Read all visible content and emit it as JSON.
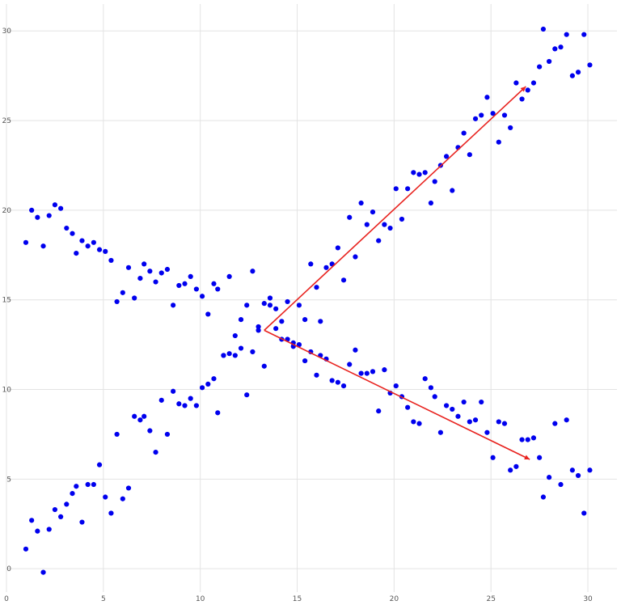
{
  "chart_data": {
    "type": "scatter",
    "title": "",
    "xlabel": "",
    "ylabel": "",
    "xlim": [
      0,
      31.5
    ],
    "ylim": [
      -1.3,
      31.5
    ],
    "xticks": [
      0,
      5,
      10,
      15,
      20,
      25,
      30
    ],
    "yticks": [
      0,
      5,
      10,
      15,
      20,
      25,
      30
    ],
    "grid": true,
    "legend": "none",
    "point_color": "#0000ee",
    "arrow_color": "#e8231f",
    "series": [
      {
        "points": [
          [
            1.0,
            1.1
          ],
          [
            1.3,
            2.7
          ],
          [
            1.6,
            2.1
          ],
          [
            1.9,
            -0.2
          ],
          [
            2.2,
            2.2
          ],
          [
            2.5,
            3.3
          ],
          [
            2.8,
            2.9
          ],
          [
            3.1,
            3.6
          ],
          [
            3.4,
            4.2
          ],
          [
            3.6,
            4.6
          ],
          [
            3.9,
            2.6
          ],
          [
            4.2,
            4.7
          ],
          [
            4.5,
            4.7
          ],
          [
            4.8,
            5.8
          ],
          [
            5.1,
            4.0
          ],
          [
            5.4,
            3.1
          ],
          [
            5.7,
            7.5
          ],
          [
            6.0,
            3.9
          ],
          [
            6.3,
            4.5
          ],
          [
            6.6,
            8.5
          ],
          [
            6.9,
            8.3
          ],
          [
            7.1,
            8.5
          ],
          [
            7.4,
            7.7
          ],
          [
            7.7,
            6.5
          ],
          [
            8.0,
            9.4
          ],
          [
            8.3,
            7.5
          ],
          [
            8.6,
            9.9
          ],
          [
            8.9,
            9.2
          ],
          [
            9.2,
            9.1
          ],
          [
            9.5,
            9.5
          ],
          [
            9.8,
            9.1
          ],
          [
            10.1,
            10.1
          ],
          [
            10.4,
            10.3
          ],
          [
            10.7,
            10.6
          ],
          [
            10.9,
            8.7
          ],
          [
            11.2,
            11.9
          ],
          [
            11.5,
            12.0
          ],
          [
            11.8,
            11.9
          ],
          [
            12.1,
            12.3
          ],
          [
            12.4,
            9.7
          ],
          [
            12.7,
            12.1
          ],
          [
            13.0,
            13.3
          ],
          [
            13.3,
            11.3
          ],
          [
            13.6,
            14.7
          ],
          [
            13.9,
            14.5
          ],
          [
            14.2,
            13.8
          ],
          [
            14.5,
            14.9
          ],
          [
            14.8,
            12.6
          ],
          [
            15.1,
            14.7
          ],
          [
            15.4,
            13.9
          ],
          [
            15.7,
            17.0
          ],
          [
            16.0,
            15.7
          ],
          [
            16.2,
            13.8
          ],
          [
            16.5,
            16.8
          ],
          [
            16.8,
            17.0
          ],
          [
            17.1,
            17.9
          ],
          [
            17.4,
            16.1
          ],
          [
            17.7,
            19.6
          ],
          [
            18.0,
            17.4
          ],
          [
            18.3,
            20.4
          ],
          [
            18.6,
            19.2
          ],
          [
            18.9,
            19.9
          ],
          [
            19.2,
            18.3
          ],
          [
            19.5,
            19.2
          ],
          [
            19.8,
            19.0
          ],
          [
            20.1,
            21.2
          ],
          [
            20.4,
            19.5
          ],
          [
            20.7,
            21.2
          ],
          [
            21.0,
            22.1
          ],
          [
            21.3,
            22.0
          ],
          [
            21.6,
            22.1
          ],
          [
            21.9,
            20.4
          ],
          [
            22.1,
            21.6
          ],
          [
            22.4,
            22.5
          ],
          [
            22.7,
            23.0
          ],
          [
            23.0,
            21.1
          ],
          [
            23.3,
            23.5
          ],
          [
            23.6,
            24.3
          ],
          [
            23.9,
            23.1
          ],
          [
            24.2,
            25.1
          ],
          [
            24.5,
            25.3
          ],
          [
            24.8,
            26.3
          ],
          [
            25.1,
            25.4
          ],
          [
            25.4,
            23.8
          ],
          [
            25.7,
            25.3
          ],
          [
            26.0,
            24.6
          ],
          [
            26.3,
            27.1
          ],
          [
            26.6,
            26.2
          ],
          [
            26.9,
            26.7
          ],
          [
            27.2,
            27.1
          ],
          [
            27.5,
            28.0
          ],
          [
            27.7,
            30.1
          ],
          [
            28.0,
            28.3
          ],
          [
            28.3,
            29.0
          ],
          [
            28.6,
            29.1
          ],
          [
            28.9,
            29.8
          ],
          [
            29.2,
            27.5
          ],
          [
            29.5,
            27.7
          ],
          [
            29.8,
            29.8
          ],
          [
            30.1,
            28.1
          ]
        ]
      },
      {
        "points": [
          [
            1.0,
            18.2
          ],
          [
            1.3,
            20.0
          ],
          [
            1.6,
            19.6
          ],
          [
            1.9,
            18.0
          ],
          [
            2.2,
            19.7
          ],
          [
            2.5,
            20.3
          ],
          [
            2.8,
            20.1
          ],
          [
            3.1,
            19.0
          ],
          [
            3.4,
            18.7
          ],
          [
            3.6,
            17.6
          ],
          [
            3.9,
            18.3
          ],
          [
            4.2,
            18.0
          ],
          [
            4.5,
            18.2
          ],
          [
            4.8,
            17.8
          ],
          [
            5.1,
            17.7
          ],
          [
            5.4,
            17.2
          ],
          [
            5.7,
            14.9
          ],
          [
            6.0,
            15.4
          ],
          [
            6.3,
            16.8
          ],
          [
            6.6,
            15.1
          ],
          [
            6.9,
            16.2
          ],
          [
            7.1,
            17.0
          ],
          [
            7.4,
            16.6
          ],
          [
            7.7,
            16.0
          ],
          [
            8.0,
            16.5
          ],
          [
            8.3,
            16.7
          ],
          [
            8.6,
            14.7
          ],
          [
            8.9,
            15.8
          ],
          [
            9.2,
            15.9
          ],
          [
            9.5,
            16.3
          ],
          [
            9.8,
            15.6
          ],
          [
            10.1,
            15.2
          ],
          [
            10.4,
            14.2
          ],
          [
            10.7,
            15.9
          ],
          [
            10.9,
            15.6
          ],
          [
            11.2,
            11.9
          ],
          [
            11.5,
            16.3
          ],
          [
            11.8,
            13.0
          ],
          [
            12.1,
            13.9
          ],
          [
            12.4,
            14.7
          ],
          [
            12.7,
            16.6
          ],
          [
            13.0,
            13.5
          ],
          [
            13.3,
            14.8
          ],
          [
            13.6,
            15.1
          ],
          [
            13.9,
            13.4
          ],
          [
            14.2,
            12.8
          ],
          [
            14.5,
            12.8
          ],
          [
            14.8,
            12.4
          ],
          [
            15.1,
            12.5
          ],
          [
            15.4,
            11.6
          ],
          [
            15.7,
            12.1
          ],
          [
            16.0,
            10.8
          ],
          [
            16.2,
            11.9
          ],
          [
            16.5,
            11.7
          ],
          [
            16.8,
            10.5
          ],
          [
            17.1,
            10.4
          ],
          [
            17.4,
            10.2
          ],
          [
            17.7,
            11.4
          ],
          [
            18.0,
            12.2
          ],
          [
            18.3,
            10.9
          ],
          [
            18.6,
            10.9
          ],
          [
            18.9,
            11.0
          ],
          [
            19.2,
            8.8
          ],
          [
            19.5,
            11.1
          ],
          [
            19.8,
            9.8
          ],
          [
            20.1,
            10.2
          ],
          [
            20.4,
            9.6
          ],
          [
            20.7,
            9.0
          ],
          [
            21.0,
            8.2
          ],
          [
            21.3,
            8.1
          ],
          [
            21.6,
            10.6
          ],
          [
            21.9,
            10.1
          ],
          [
            22.1,
            9.6
          ],
          [
            22.4,
            7.6
          ],
          [
            22.7,
            9.1
          ],
          [
            23.0,
            8.9
          ],
          [
            23.3,
            8.5
          ],
          [
            23.6,
            9.3
          ],
          [
            23.9,
            8.2
          ],
          [
            24.2,
            8.3
          ],
          [
            24.5,
            9.3
          ],
          [
            24.8,
            7.6
          ],
          [
            25.1,
            6.2
          ],
          [
            25.4,
            8.2
          ],
          [
            25.7,
            8.1
          ],
          [
            26.0,
            5.5
          ],
          [
            26.3,
            5.7
          ],
          [
            26.6,
            7.2
          ],
          [
            26.9,
            7.2
          ],
          [
            27.2,
            7.3
          ],
          [
            27.5,
            6.2
          ],
          [
            27.7,
            4.0
          ],
          [
            28.0,
            5.1
          ],
          [
            28.3,
            8.1
          ],
          [
            28.6,
            4.7
          ],
          [
            28.9,
            8.3
          ],
          [
            29.2,
            5.5
          ],
          [
            29.5,
            5.2
          ],
          [
            29.8,
            3.1
          ],
          [
            30.1,
            5.5
          ]
        ]
      }
    ],
    "arrows": [
      {
        "from": [
          13.3,
          13.3
        ],
        "to": [
          26.8,
          26.9
        ]
      },
      {
        "from": [
          13.3,
          13.3
        ],
        "to": [
          27.0,
          6.1
        ]
      }
    ]
  }
}
